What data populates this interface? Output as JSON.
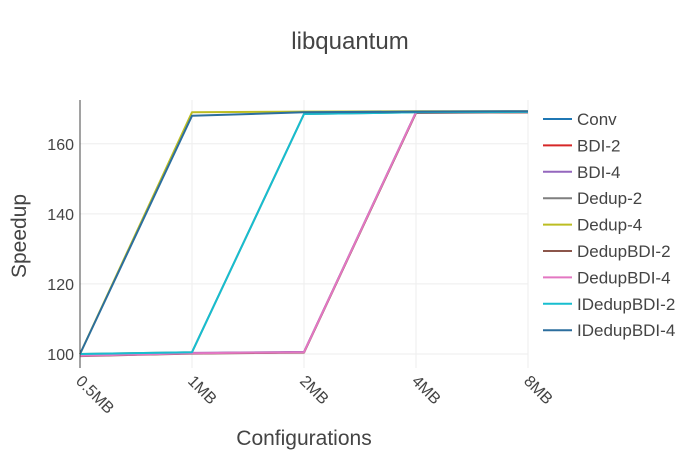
{
  "chart_data": {
    "type": "line",
    "title": "libquantum",
    "xlabel": "Configurations",
    "ylabel": "Speedup",
    "categories": [
      "0.5MB",
      "1MB",
      "2MB",
      "4MB",
      "8MB"
    ],
    "ylim": [
      96,
      172.5
    ],
    "yticks": [
      100,
      120,
      140,
      160
    ],
    "grid": true,
    "legend_position": "right",
    "series": [
      {
        "name": "Conv",
        "color": "#1f77b4",
        "values": [
          99.5,
          100.2,
          100.5,
          169.0,
          169.0
        ]
      },
      {
        "name": "BDI-2",
        "color": "#d62728",
        "values": [
          99.5,
          100.2,
          100.5,
          168.9,
          169.0
        ]
      },
      {
        "name": "BDI-4",
        "color": "#9467bd",
        "values": [
          99.6,
          100.3,
          100.6,
          169.0,
          169.1
        ]
      },
      {
        "name": "Dedup-2",
        "color": "#7f7f7f",
        "values": [
          100.0,
          100.5,
          168.5,
          169.0,
          169.1
        ]
      },
      {
        "name": "Dedup-4",
        "color": "#bcbd22",
        "values": [
          100.0,
          169.0,
          169.2,
          169.3,
          169.3
        ]
      },
      {
        "name": "DedupBDI-2",
        "color": "#8c564b",
        "values": [
          99.4,
          100.1,
          100.4,
          168.8,
          169.0
        ]
      },
      {
        "name": "DedupBDI-4",
        "color": "#e377c2",
        "values": [
          99.5,
          100.2,
          100.5,
          169.0,
          169.1
        ]
      },
      {
        "name": "IDedupBDI-2",
        "color": "#17becf",
        "values": [
          100.0,
          100.5,
          168.5,
          169.0,
          169.1
        ]
      },
      {
        "name": "IDedupBDI-4",
        "color": "#2c6e9e",
        "values": [
          100.0,
          168.0,
          169.0,
          169.2,
          169.3
        ]
      }
    ]
  }
}
